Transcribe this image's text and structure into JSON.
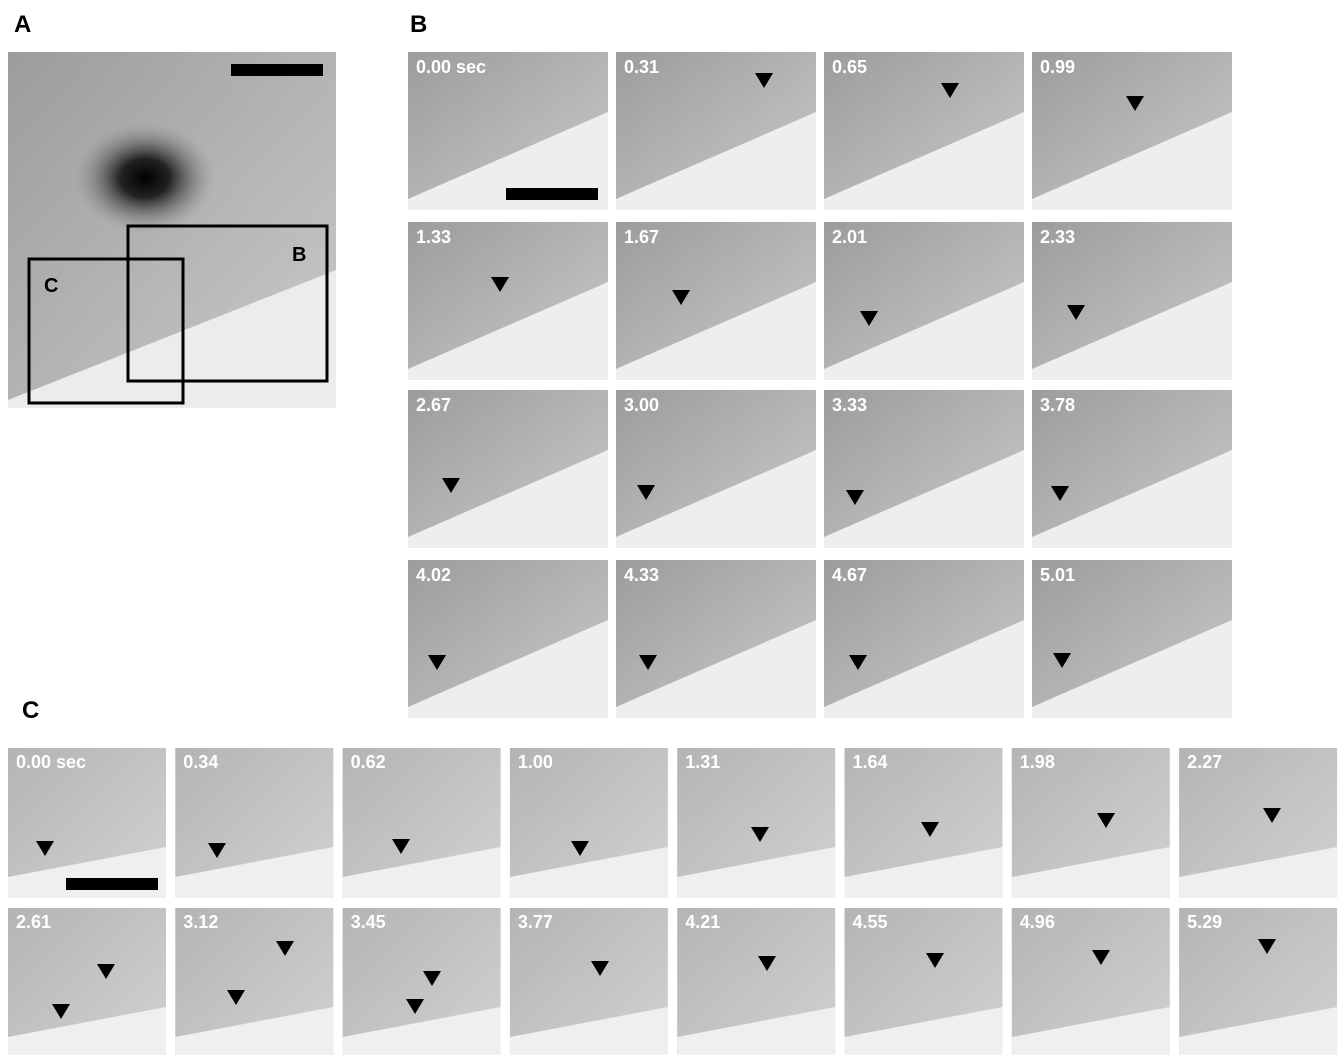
{
  "panel_a": {
    "label": "A",
    "boxes": [
      "B",
      "C"
    ]
  },
  "panel_b": {
    "label": "B",
    "frames": [
      "0.00 sec",
      "0.31",
      "0.65",
      "0.99",
      "1.33",
      "1.67",
      "2.01",
      "2.33",
      "2.67",
      "3.00",
      "3.33",
      "3.78",
      "4.02",
      "4.33",
      "4.67",
      "5.01"
    ]
  },
  "panel_c": {
    "label": "C",
    "frames": [
      "0.00 sec",
      "0.34",
      "0.62",
      "1.00",
      "1.31",
      "1.64",
      "1.98",
      "2.27",
      "2.61",
      "3.12",
      "3.45",
      "3.77",
      "4.21",
      "4.55",
      "4.96",
      "5.29"
    ]
  }
}
